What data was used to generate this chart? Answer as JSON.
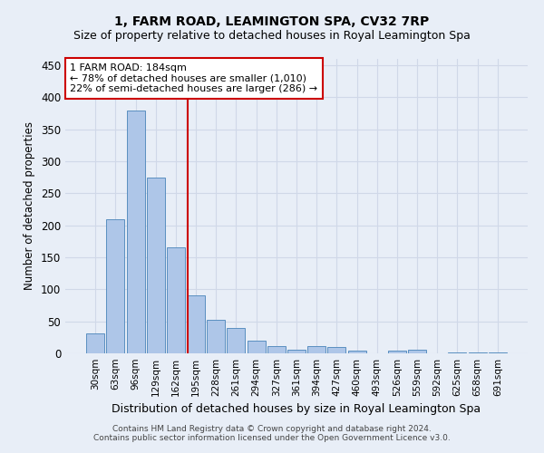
{
  "title": "1, FARM ROAD, LEAMINGTON SPA, CV32 7RP",
  "subtitle": "Size of property relative to detached houses in Royal Leamington Spa",
  "xlabel": "Distribution of detached houses by size in Royal Leamington Spa",
  "ylabel": "Number of detached properties",
  "footnote1": "Contains HM Land Registry data © Crown copyright and database right 2024.",
  "footnote2": "Contains public sector information licensed under the Open Government Licence v3.0.",
  "bar_values": [
    31,
    210,
    380,
    275,
    165,
    91,
    52,
    39,
    20,
    11,
    6,
    11,
    10,
    4,
    0,
    4,
    5,
    0,
    2,
    2,
    2
  ],
  "bar_labels": [
    "30sqm",
    "63sqm",
    "96sqm",
    "129sqm",
    "162sqm",
    "195sqm",
    "228sqm",
    "261sqm",
    "294sqm",
    "327sqm",
    "361sqm",
    "394sqm",
    "427sqm",
    "460sqm",
    "493sqm",
    "526sqm",
    "559sqm",
    "592sqm",
    "625sqm",
    "658sqm",
    "691sqm"
  ],
  "bar_color": "#aec6e8",
  "bar_edge_color": "#5a8fc0",
  "vline_x": 4.57,
  "vline_color": "#cc0000",
  "annotation_text": "1 FARM ROAD: 184sqm\n← 78% of detached houses are smaller (1,010)\n22% of semi-detached houses are larger (286) →",
  "annotation_box_color": "#ffffff",
  "annotation_box_edge_color": "#cc0000",
  "ylim": [
    0,
    460
  ],
  "yticks": [
    0,
    50,
    100,
    150,
    200,
    250,
    300,
    350,
    400,
    450
  ],
  "grid_color": "#d0d8e8",
  "bg_color": "#e8eef7",
  "title_fontsize": 10,
  "subtitle_fontsize": 9,
  "footnote_fontsize": 6.5
}
